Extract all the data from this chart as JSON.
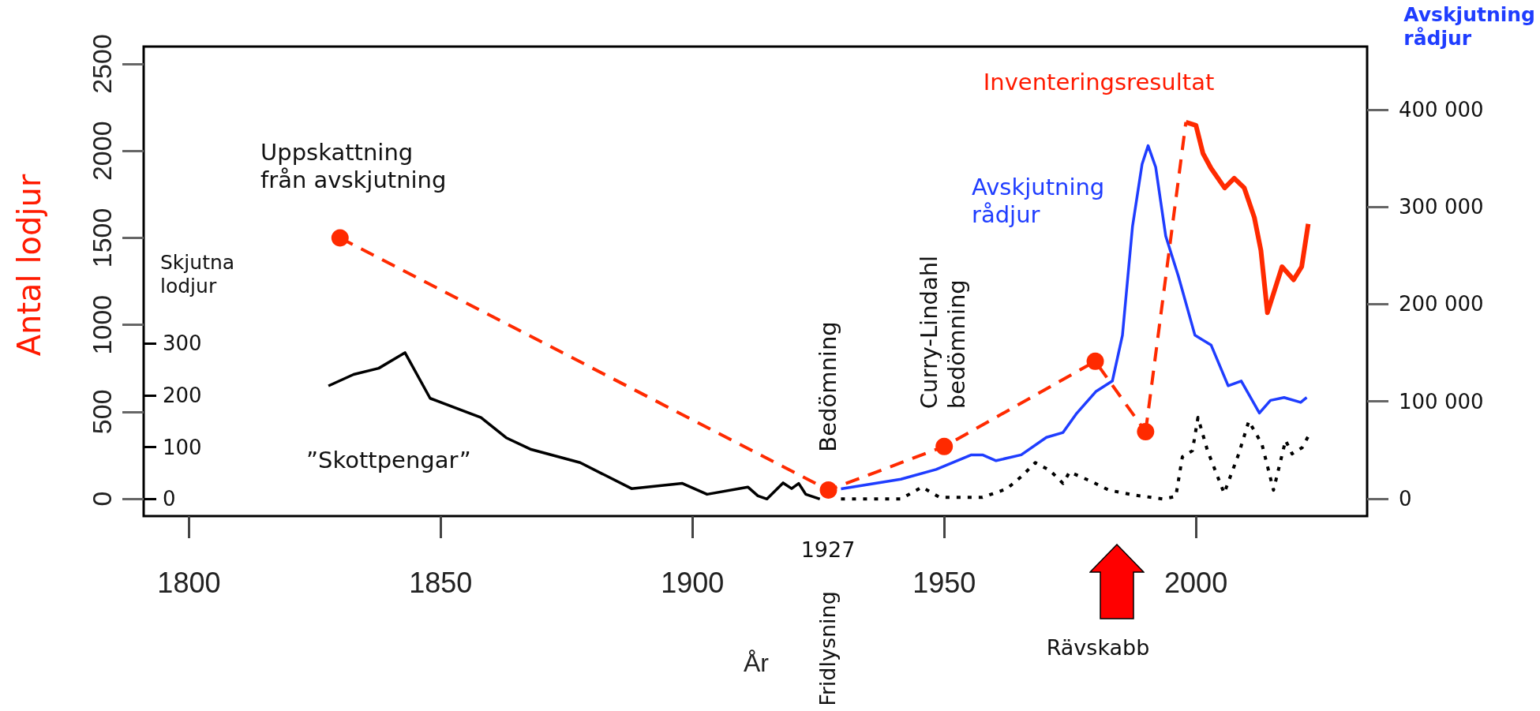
{
  "chart_data": {
    "type": "line",
    "xlabel": "År",
    "ylabel": "Antal lodjur",
    "y2label": "Skjutna lodjur",
    "y3label": "Avskjutning rådjur",
    "xlim": [
      1791,
      2034
    ],
    "xticks": [
      1800,
      1850,
      1900,
      1950,
      2000
    ],
    "ylim": [
      -100,
      2600
    ],
    "yticks": [
      0,
      500,
      1000,
      1500,
      2000,
      2500
    ],
    "y2lim": [
      -33,
      872
    ],
    "y2ticks": [
      0,
      100,
      200,
      300
    ],
    "y3lim": [
      -18000,
      465000
    ],
    "y3ticks": [
      0,
      {
        "value": 100000,
        "label": "100 000"
      },
      {
        "value": 200000,
        "label": "200 000"
      },
      {
        "value": 300000,
        "label": "300 000"
      },
      {
        "value": 400000,
        "label": "400 000"
      }
    ],
    "series": [
      {
        "color": "#ff2a00",
        "line_style": "dashed",
        "marker": "circle",
        "axis": "y",
        "x": [
          1830,
          1927,
          1950,
          1980,
          1990
        ],
        "values": [
          1500,
          50,
          300,
          790,
          385
        ]
      },
      {
        "color": "#ff2a00",
        "line_style": "dashed",
        "marker": "none",
        "axis": "y",
        "x": [
          1990,
          1998
        ],
        "values": [
          385,
          2165
        ]
      },
      {
        "color": "#ff2a00",
        "line_style": "solid",
        "marker": "none",
        "axis": "y",
        "x": [
          1998,
          2000,
          2001.4,
          2003,
          2005.7,
          2007.6,
          2009.6,
          2011.6,
          2012.9,
          2014.2,
          2017.1,
          2019.4,
          2021,
          2022.3
        ],
        "values": [
          2165,
          2147,
          1985,
          1900,
          1787,
          1843,
          1787,
          1617,
          1428,
          1070,
          1334,
          1259,
          1334,
          1580
        ]
      },
      {
        "color": "#1f3dff",
        "line_style": "solid",
        "marker": "none",
        "axis": "y3",
        "x": [
          1929.5,
          1941.4,
          1948.4,
          1955.4,
          1957.6,
          1960.3,
          1965.3,
          1970.3,
          1973.6,
          1976.2,
          1980.1,
          1983.4,
          1985.4,
          1987.4,
          1989.3,
          1990.5,
          1992,
          1994,
          1996.5,
          1999.8,
          2003,
          2006.4,
          2009,
          2012.6,
          2014.8,
          2017.5,
          2020.8,
          2022
        ],
        "values": [
          10000,
          20000,
          30000,
          45000,
          45000,
          39000,
          45000,
          63000,
          68000,
          87000,
          110000,
          121000,
          168000,
          280000,
          344000,
          363000,
          341000,
          270000,
          229000,
          168000,
          158000,
          116000,
          121000,
          88000,
          101000,
          104000,
          99000,
          104000
        ]
      },
      {
        "color": "#000000",
        "line_style": "solid",
        "marker": "none",
        "axis": "y2",
        "x": [
          1827.7,
          1832.7,
          1837.7,
          1842.9,
          1847.9,
          1858,
          1863,
          1867.8,
          1877.7,
          1887.9,
          1898,
          1902.9,
          1911,
          1913,
          1914.8,
          1918,
          1919.7,
          1921.1,
          1922.5,
          1925.3
        ],
        "values": [
          218,
          240,
          252,
          282,
          194,
          157,
          118,
          96,
          70,
          20,
          30,
          9,
          23,
          6,
          0,
          31,
          20,
          30,
          9,
          0
        ]
      },
      {
        "color": "#000000",
        "line_style": "dotted",
        "marker": "none",
        "axis": "y2",
        "x": [
          1929.5,
          1941.4,
          1945.6,
          1949.1,
          1957.6,
          1962.5,
          1965.3,
          1968.1,
          1971,
          1973.6,
          1974.9,
          1979.4,
          1982.7,
          1987.4,
          1993.4,
          1996,
          1997.3,
          1999.3,
          2000.4,
          2002.3,
          2005.6,
          2008.5,
          2010.5,
          2013.1,
          2015.4,
          2017.8,
          2019.1,
          2021.1,
          2022.7
        ],
        "values": [
          0,
          0,
          23,
          3,
          3,
          20,
          43,
          70,
          55,
          30,
          52,
          33,
          17,
          8,
          0,
          5,
          81,
          93,
          157,
          93,
          11,
          87,
          150,
          106,
          17,
          113,
          87,
          99,
          128
        ]
      }
    ],
    "annotations": [
      "Uppskattning från avskjutning",
      "”Skottpengar”",
      "Bedömning",
      "Curry-Lindahl bedömning",
      "1927",
      "Fridlysning",
      "Rävskabb",
      "Avskjutning rådjur",
      "Inventeringsresultat"
    ]
  }
}
